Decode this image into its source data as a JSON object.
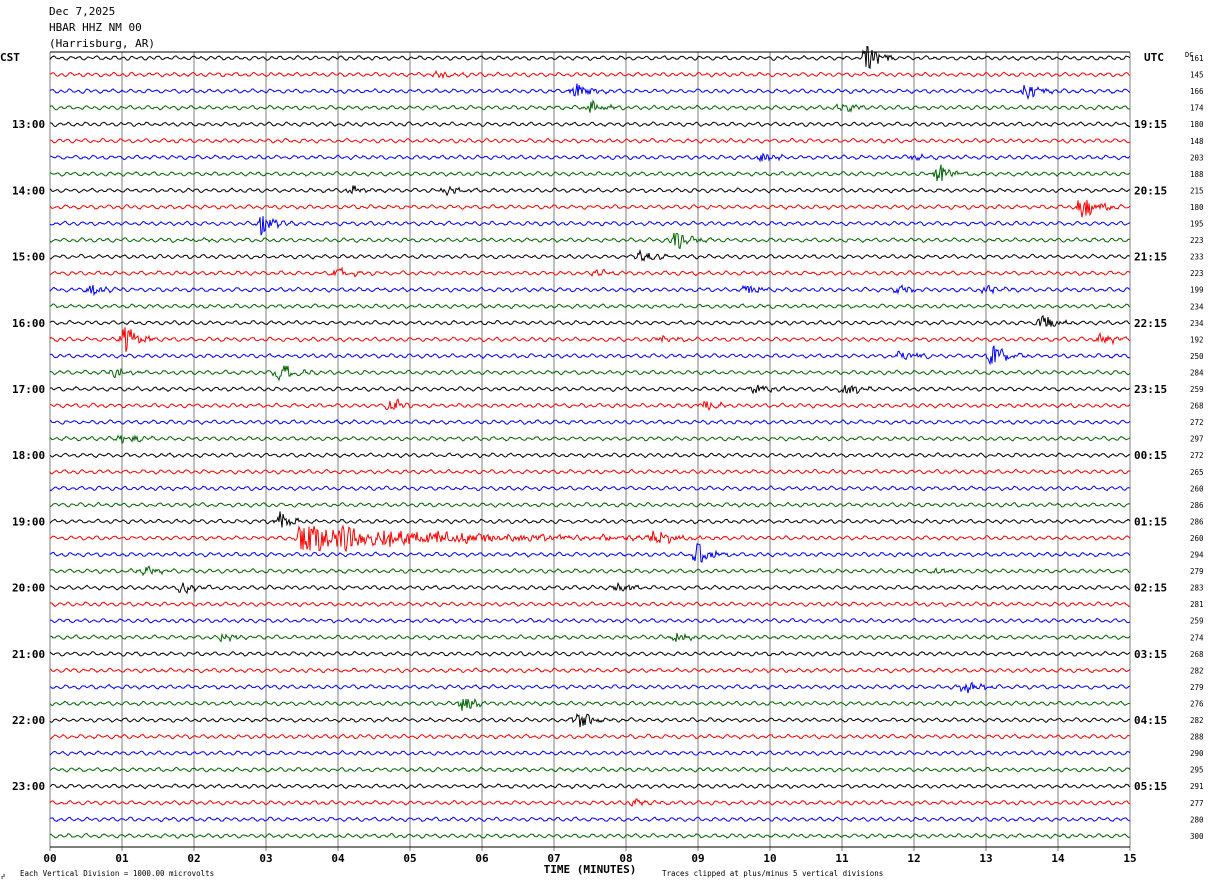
{
  "header": {
    "date": "Dec 7,2025",
    "station": "HBAR HHZ NM 00",
    "location": "(Harrisburg, AR)"
  },
  "left_tz": "CST",
  "right_tz": "UTC",
  "dc_header": "DC",
  "footer": {
    "scale_note": "Each Vertical Division = 1000.00 microvolts",
    "clip_note": "Traces clipped at plus/minus 5 vertical divisions",
    "corner_mark": "☍"
  },
  "colors": {
    "trace_cycle": [
      "#000000",
      "#ff0000",
      "#0000ff",
      "#006400"
    ],
    "grid": "#7f7f7f",
    "frame": "#000000"
  },
  "chart_data": {
    "type": "line",
    "title": "HBAR HHZ NM 00",
    "xlabel": "TIME (MINUTES)",
    "xlim": [
      0,
      15
    ],
    "x_ticks": [
      "00",
      "01",
      "02",
      "03",
      "04",
      "05",
      "06",
      "07",
      "08",
      "09",
      "10",
      "11",
      "12",
      "13",
      "14",
      "15"
    ],
    "trace_count": 48,
    "left_hour_labels": [
      {
        "trace": 4,
        "label": "13:00"
      },
      {
        "trace": 8,
        "label": "14:00"
      },
      {
        "trace": 12,
        "label": "15:00"
      },
      {
        "trace": 16,
        "label": "16:00"
      },
      {
        "trace": 20,
        "label": "17:00"
      },
      {
        "trace": 24,
        "label": "18:00"
      },
      {
        "trace": 28,
        "label": "19:00"
      },
      {
        "trace": 32,
        "label": "20:00"
      },
      {
        "trace": 36,
        "label": "21:00"
      },
      {
        "trace": 40,
        "label": "22:00"
      },
      {
        "trace": 44,
        "label": "23:00"
      }
    ],
    "right_hour_labels": [
      {
        "trace": 4,
        "label": "19:15"
      },
      {
        "trace": 8,
        "label": "20:15"
      },
      {
        "trace": 12,
        "label": "21:15"
      },
      {
        "trace": 16,
        "label": "22:15"
      },
      {
        "trace": 20,
        "label": "23:15"
      },
      {
        "trace": 24,
        "label": "00:15"
      },
      {
        "trace": 28,
        "label": "01:15"
      },
      {
        "trace": 32,
        "label": "02:15"
      },
      {
        "trace": 36,
        "label": "03:15"
      },
      {
        "trace": 40,
        "label": "04:15"
      },
      {
        "trace": 44,
        "label": "05:15"
      }
    ],
    "dc_offsets": [
      161,
      145,
      166,
      174,
      180,
      148,
      203,
      188,
      215,
      180,
      195,
      223,
      233,
      223,
      199,
      234,
      234,
      192,
      250,
      284,
      259,
      268,
      272,
      297,
      272,
      265,
      260,
      286,
      286,
      260,
      294,
      279,
      283,
      281,
      259,
      274,
      268,
      282,
      279,
      276,
      282,
      288,
      290,
      295,
      291,
      277,
      280,
      300
    ],
    "events": [
      {
        "trace": 0,
        "minute": 11.35,
        "amp": 2.6
      },
      {
        "trace": 1,
        "minute": 5.4,
        "amp": 0.9
      },
      {
        "trace": 2,
        "minute": 7.3,
        "amp": 1.6
      },
      {
        "trace": 2,
        "minute": 13.55,
        "amp": 1.6
      },
      {
        "trace": 3,
        "minute": 7.5,
        "amp": 1.2
      },
      {
        "trace": 3,
        "minute": 11.0,
        "amp": 0.9
      },
      {
        "trace": 6,
        "minute": 9.9,
        "amp": 0.9
      },
      {
        "trace": 6,
        "minute": 12.0,
        "amp": 0.5
      },
      {
        "trace": 7,
        "minute": 12.35,
        "amp": 1.8
      },
      {
        "trace": 8,
        "minute": 4.2,
        "amp": 0.8
      },
      {
        "trace": 8,
        "minute": 5.5,
        "amp": 0.8
      },
      {
        "trace": 9,
        "minute": 14.35,
        "amp": 2.6
      },
      {
        "trace": 10,
        "minute": 2.95,
        "amp": 2.2
      },
      {
        "trace": 11,
        "minute": 8.7,
        "amp": 1.6
      },
      {
        "trace": 11,
        "minute": 2.0,
        "amp": 0.4
      },
      {
        "trace": 12,
        "minute": 8.2,
        "amp": 1.2
      },
      {
        "trace": 13,
        "minute": 4.0,
        "amp": 1.0
      },
      {
        "trace": 13,
        "minute": 7.6,
        "amp": 0.6
      },
      {
        "trace": 14,
        "minute": 0.6,
        "amp": 1.2
      },
      {
        "trace": 14,
        "minute": 9.7,
        "amp": 0.8
      },
      {
        "trace": 14,
        "minute": 11.8,
        "amp": 1.0
      },
      {
        "trace": 14,
        "minute": 13.0,
        "amp": 0.8
      },
      {
        "trace": 16,
        "minute": 13.8,
        "amp": 1.6
      },
      {
        "trace": 17,
        "minute": 1.05,
        "amp": 2.6
      },
      {
        "trace": 17,
        "minute": 8.5,
        "amp": 0.7
      },
      {
        "trace": 17,
        "minute": 14.6,
        "amp": 1.0
      },
      {
        "trace": 18,
        "minute": 11.85,
        "amp": 1.2
      },
      {
        "trace": 18,
        "minute": 13.1,
        "amp": 2.0
      },
      {
        "trace": 19,
        "minute": 0.9,
        "amp": 1.0
      },
      {
        "trace": 19,
        "minute": 3.2,
        "amp": 1.8
      },
      {
        "trace": 20,
        "minute": 9.8,
        "amp": 1.0
      },
      {
        "trace": 20,
        "minute": 11.05,
        "amp": 1.4
      },
      {
        "trace": 21,
        "minute": 4.75,
        "amp": 1.2
      },
      {
        "trace": 21,
        "minute": 9.1,
        "amp": 1.0
      },
      {
        "trace": 23,
        "minute": 1.0,
        "amp": 1.1
      },
      {
        "trace": 28,
        "minute": 3.2,
        "amp": 1.8
      },
      {
        "trace": 29,
        "minute": 3.5,
        "amp": 2.8,
        "dur": 6.0
      },
      {
        "trace": 29,
        "minute": 8.4,
        "amp": 1.8
      },
      {
        "trace": 30,
        "minute": 9.0,
        "amp": 2.0
      },
      {
        "trace": 31,
        "minute": 1.3,
        "amp": 0.9
      },
      {
        "trace": 31,
        "minute": 12.3,
        "amp": 0.5
      },
      {
        "trace": 32,
        "minute": 1.85,
        "amp": 1.2
      },
      {
        "trace": 32,
        "minute": 7.9,
        "amp": 0.8
      },
      {
        "trace": 35,
        "minute": 2.4,
        "amp": 0.8
      },
      {
        "trace": 35,
        "minute": 8.7,
        "amp": 0.8
      },
      {
        "trace": 38,
        "minute": 12.7,
        "amp": 1.4
      },
      {
        "trace": 39,
        "minute": 5.75,
        "amp": 1.4
      },
      {
        "trace": 40,
        "minute": 7.35,
        "amp": 1.5
      },
      {
        "trace": 45,
        "minute": 8.1,
        "amp": 0.5
      }
    ]
  }
}
